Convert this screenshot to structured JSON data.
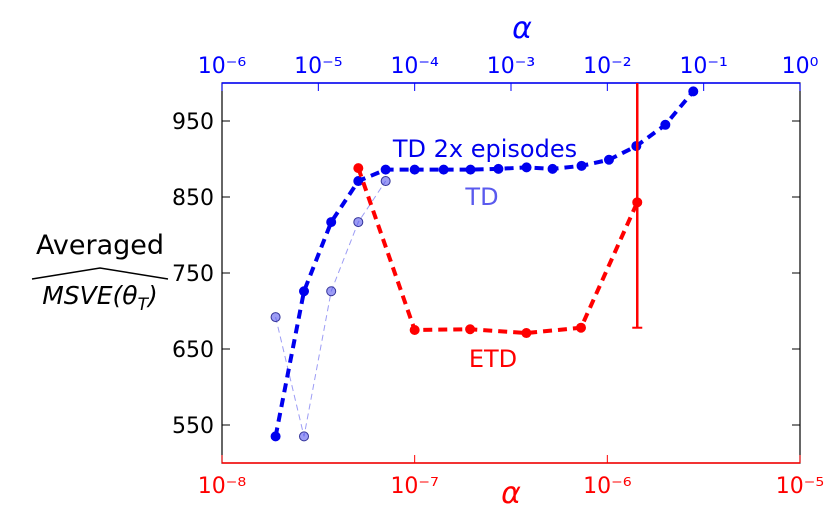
{
  "chart_data": {
    "type": "line",
    "ylabel": {
      "line1": "Averaged",
      "line2": "MSVE(θ",
      "subscript": "T",
      "close": ")"
    },
    "ylim": [
      500,
      1000
    ],
    "yticks": [
      550,
      650,
      750,
      850,
      950
    ],
    "x_top": {
      "label": "α",
      "color": "#0000ff",
      "log": true,
      "xlim": [
        1e-06,
        1
      ],
      "xticks": [
        {
          "value": 1e-06,
          "label": "10⁻⁶"
        },
        {
          "value": 1e-05,
          "label": "10⁻⁵"
        },
        {
          "value": 0.0001,
          "label": "10⁻⁴"
        },
        {
          "value": 0.001,
          "label": "10⁻³"
        },
        {
          "value": 0.01,
          "label": "10⁻²"
        },
        {
          "value": 0.1,
          "label": "10⁻¹"
        },
        {
          "value": 1,
          "label": "10⁰"
        }
      ]
    },
    "x_bottom": {
      "label": "α",
      "color": "#ff0000",
      "log": true,
      "xlim": [
        1e-08,
        1e-05
      ],
      "xticks": [
        {
          "value": 1e-08,
          "label": "10⁻⁸"
        },
        {
          "value": 1e-07,
          "label": "10⁻⁷"
        },
        {
          "value": 1e-06,
          "label": "10⁻⁶"
        },
        {
          "value": 1e-05,
          "label": "10⁻⁵"
        }
      ]
    },
    "series": [
      {
        "name": "TD",
        "axis": "top",
        "color": "#5a5aee",
        "width": 1,
        "alpha": 0.6,
        "x": [
          3.6e-06,
          7.1e-06,
          1.36e-05,
          2.6e-05,
          5e-05
        ],
        "values": [
          692,
          535,
          726,
          817,
          871
        ]
      },
      {
        "name": "TD 2x episodes",
        "axis": "top",
        "color": "#0000ee",
        "width": 4,
        "alpha": 1,
        "x": [
          3.6e-06,
          7.1e-06,
          1.36e-05,
          2.6e-05,
          5e-05,
          0.0001,
          0.0002,
          0.00038,
          0.00074,
          0.00145,
          0.0027,
          0.0054,
          0.0104,
          0.02,
          0.04,
          0.078
        ],
        "values": [
          535,
          726,
          817,
          871,
          886,
          886,
          886,
          886,
          887,
          889,
          887,
          891,
          899,
          917,
          945,
          989
        ]
      },
      {
        "name": "ETD",
        "axis": "bottom",
        "color": "#ff0000",
        "width": 4,
        "alpha": 1,
        "x": [
          5.1e-08,
          1e-07,
          1.94e-07,
          3.8e-07,
          7.3e-07,
          1.43e-06
        ],
        "values": [
          888,
          675,
          676,
          671,
          678,
          843
        ],
        "errors": [
          null,
          null,
          null,
          null,
          null,
          165
        ]
      }
    ],
    "annotations": [
      {
        "text": "TD 2x episodes",
        "series": 1
      },
      {
        "text": "TD",
        "series": 0
      },
      {
        "text": "ETD",
        "series": 2
      }
    ]
  }
}
